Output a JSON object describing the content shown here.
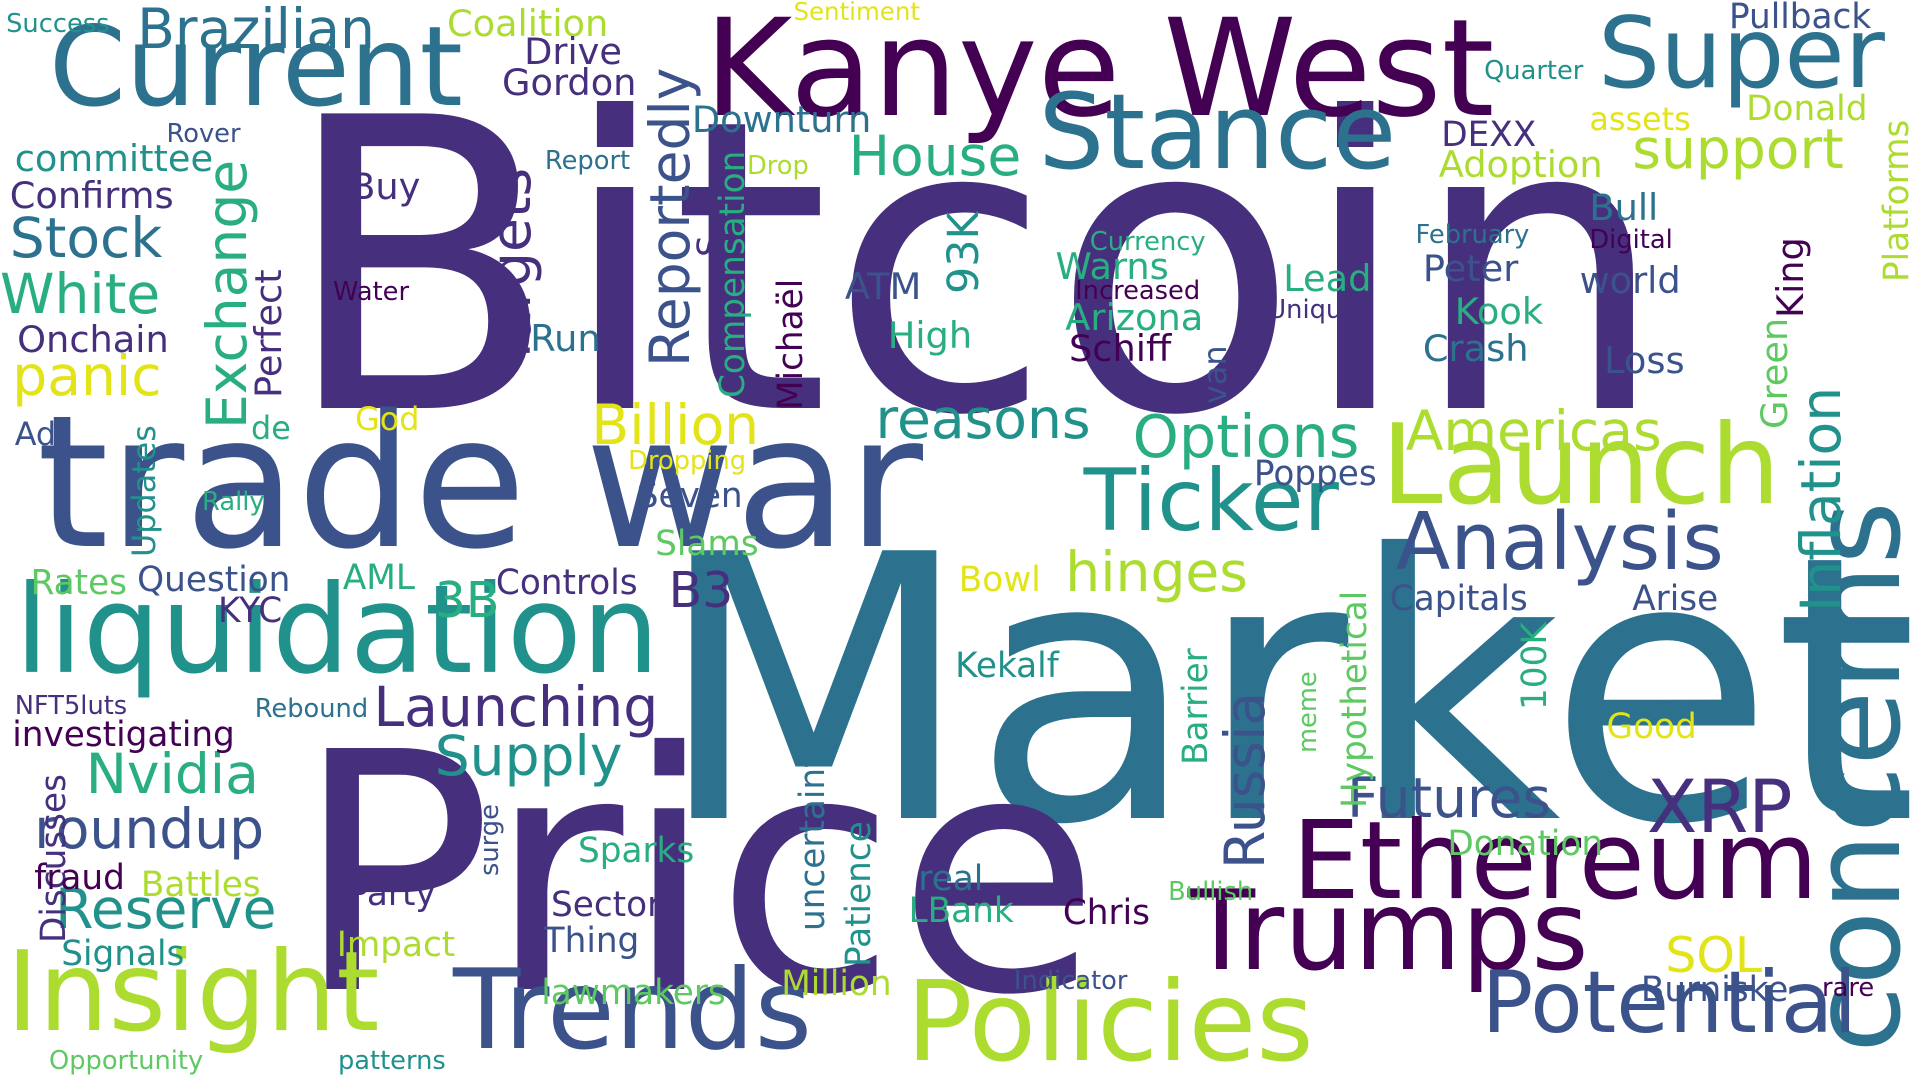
{
  "palette": {
    "c1": "#440154",
    "c2": "#46307e",
    "c3": "#3b528b",
    "c4": "#2c728e",
    "c5": "#21918c",
    "c6": "#28ae80",
    "c7": "#5ec962",
    "c8": "#addc30",
    "c9": "#e3e418"
  },
  "words": [
    "Bitcoin",
    "Market",
    "Price",
    "trade war",
    "Kanye West",
    "Current",
    "Super",
    "Stance",
    "Launch",
    "liquidation",
    "concerns",
    "Insight",
    "Trends",
    "Policies",
    "Trumps",
    "Ethereum",
    "Potential",
    "Ticker",
    "Analysis",
    "XRP",
    "Futures",
    "Americas",
    "Options",
    "reasons",
    "hinges",
    "Inflation",
    "Reportedly",
    "Targets",
    "Exchange",
    "Launching",
    "Supply",
    "Nvidia",
    "roundup",
    "Reserve",
    "Russia",
    "Billion",
    "House",
    "support",
    "Stock",
    "White",
    "panic",
    "Brazilian",
    "Coalition",
    "Sentiment",
    "Pullback",
    "Quarter",
    "assets",
    "Donald",
    "Adoption",
    "Platforms",
    "Drive",
    "Gordon",
    "Downturn",
    "Rover",
    "Report",
    "Drop",
    "committee",
    "Confirms",
    "Buy",
    "Onchain",
    "Perfect",
    "Water",
    "Run",
    "Compensation",
    "Michaël",
    "ATM",
    "93K",
    "High",
    "Warns",
    "Currency",
    "Increased",
    "Arizona",
    "Schiff",
    "Lead",
    "Unique",
    "Peter",
    "Kook",
    "Crash",
    "February",
    "Digital",
    "King",
    "world",
    "Bull",
    "Loss",
    "Green",
    "van",
    "Ad",
    "Updates",
    "de",
    "God",
    "Dropping",
    "Rally",
    "Seven",
    "Poppes",
    "Slams",
    "3B",
    "B3",
    "Controls",
    "Capitals",
    "Arise",
    "Rates",
    "Question",
    "AML",
    "KYC",
    "Bowl",
    "Barrier",
    "Kekalf",
    "100K",
    "meme",
    "Hypothetical",
    "Good",
    "NFT5luts",
    "Rebound",
    "investigating",
    "Discusses",
    "fraud",
    "Battles",
    "surge",
    "Signals",
    "Impact",
    "Party",
    "Sparks",
    "uncertainty",
    "Patience",
    "Sector",
    "Thing",
    "real",
    "LBank",
    "Chris",
    "Bullish",
    "Donation",
    "SOL",
    "Indicator",
    "Burniske",
    "rare",
    "Million",
    "lawmakers",
    "Success",
    "S",
    "Opportunity",
    "patterns",
    "DEXX"
  ]
}
